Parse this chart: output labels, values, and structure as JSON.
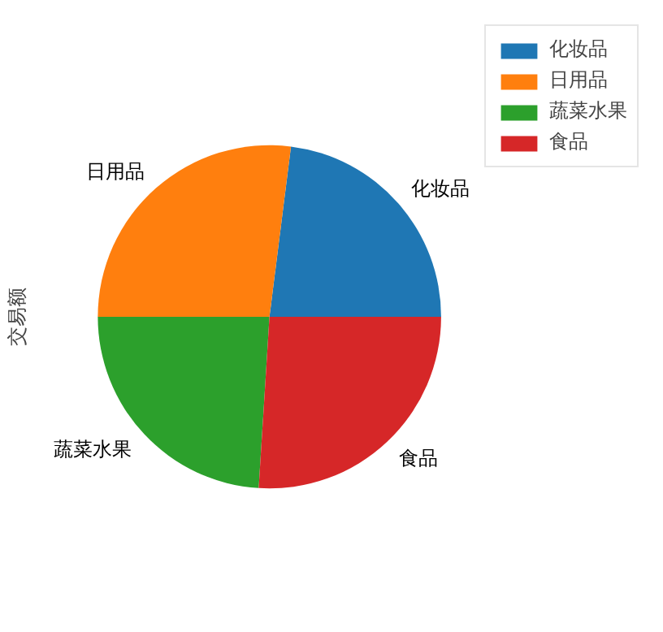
{
  "chart_data": {
    "type": "pie",
    "ylabel": "交易额",
    "categories": [
      "化妆品",
      "日用品",
      "蔬菜水果",
      "食品"
    ],
    "values": [
      23,
      27,
      24,
      26
    ],
    "colors": [
      "#1f77b4",
      "#ff7f0e",
      "#2ca02c",
      "#d62728"
    ],
    "legend": "top right"
  }
}
